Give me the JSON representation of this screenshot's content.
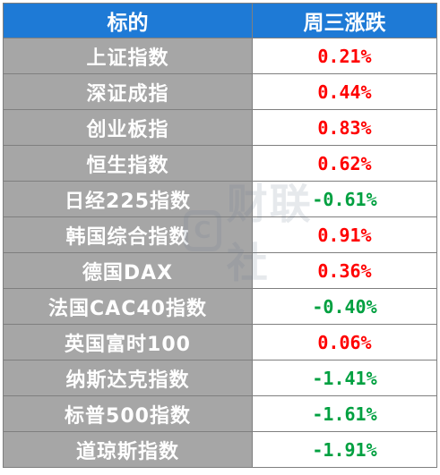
{
  "table": {
    "header": {
      "name": "标的",
      "change": "周三涨跌"
    },
    "rows": [
      {
        "name": "上证指数",
        "change": "0.21%",
        "direction": "up"
      },
      {
        "name": "深证成指",
        "change": "0.44%",
        "direction": "up"
      },
      {
        "name": "创业板指",
        "change": "0.83%",
        "direction": "up"
      },
      {
        "name": "恒生指数",
        "change": "0.62%",
        "direction": "up"
      },
      {
        "name": "日经225指数",
        "change": "-0.61%",
        "direction": "down"
      },
      {
        "name": "韩国综合指数",
        "change": "0.91%",
        "direction": "up"
      },
      {
        "name": "德国DAX",
        "change": "0.36%",
        "direction": "up"
      },
      {
        "name": "法国CAC40指数",
        "change": "-0.40%",
        "direction": "down"
      },
      {
        "name": "英国富时100",
        "change": "0.06%",
        "direction": "up"
      },
      {
        "name": "纳斯达克指数",
        "change": "-1.41%",
        "direction": "down"
      },
      {
        "name": "标普500指数",
        "change": "-1.61%",
        "direction": "down"
      },
      {
        "name": "道琼斯指数",
        "change": "-1.91%",
        "direction": "down"
      }
    ]
  },
  "colors": {
    "header_bg": "#1e7ad6",
    "name_bg": "#a6a6a6",
    "up": "#ff0000",
    "down": "#00a040"
  },
  "watermark": {
    "text": "财联社"
  }
}
